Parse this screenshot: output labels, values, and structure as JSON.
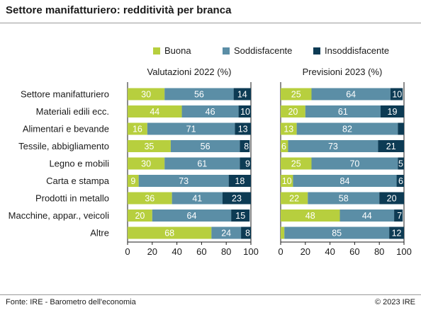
{
  "title": "Settore manifatturiero: redditività per branca",
  "source": "Fonte: IRE - Barometro dell'economia",
  "copyright": "© 2023 IRE",
  "colors": {
    "Buona": "#b7cf3e",
    "Soddisfacente": "#5b8ea6",
    "Insoddisfacente": "#0d3b54"
  },
  "chart_data": {
    "type": "bar",
    "orientation": "horizontal",
    "stacked": true,
    "categories": [
      "Settore manifatturiero",
      "Materiali edili ecc.",
      "Alimentari e bevande",
      "Tessile, abbigliamento",
      "Legno e mobili",
      "Carta e stampa",
      "Prodotti in metallo",
      "Macchine, appar., veicoli",
      "Altre"
    ],
    "legend": [
      "Buona",
      "Soddisfacente",
      "Insoddisfacente"
    ],
    "legend_position": "top",
    "xlim": [
      0,
      100
    ],
    "ticks": [
      0,
      20,
      40,
      60,
      80,
      100
    ],
    "panels": [
      {
        "title": "Valutazioni 2022 (%)",
        "series": [
          {
            "name": "Buona",
            "values": [
              30,
              44,
              16,
              35,
              30,
              9,
              36,
              20,
              68
            ]
          },
          {
            "name": "Soddisfacente",
            "values": [
              56,
              46,
              71,
              56,
              61,
              73,
              41,
              64,
              24
            ]
          },
          {
            "name": "Insoddisfacente",
            "values": [
              14,
              10,
              13,
              8,
              9,
              18,
              23,
              15,
              8
            ]
          }
        ]
      },
      {
        "title": "Previsioni 2023 (%)",
        "series": [
          {
            "name": "Buona",
            "values": [
              25,
              20,
              13,
              6,
              25,
              10,
              22,
              48,
              3
            ]
          },
          {
            "name": "Soddisfacente",
            "values": [
              64,
              61,
              82,
              73,
              70,
              84,
              58,
              44,
              85
            ]
          },
          {
            "name": "Insoddisfacente",
            "values": [
              10,
              19,
              5,
              21,
              5,
              6,
              20,
              7,
              12
            ]
          }
        ],
        "labels": [
          [
            25,
            64,
            10
          ],
          [
            20,
            61,
            19
          ],
          [
            13,
            82,
            null
          ],
          [
            6,
            73,
            21
          ],
          [
            25,
            70,
            5
          ],
          [
            10,
            84,
            6
          ],
          [
            22,
            58,
            20
          ],
          [
            48,
            44,
            7
          ],
          [
            null,
            85,
            12
          ]
        ]
      }
    ]
  }
}
